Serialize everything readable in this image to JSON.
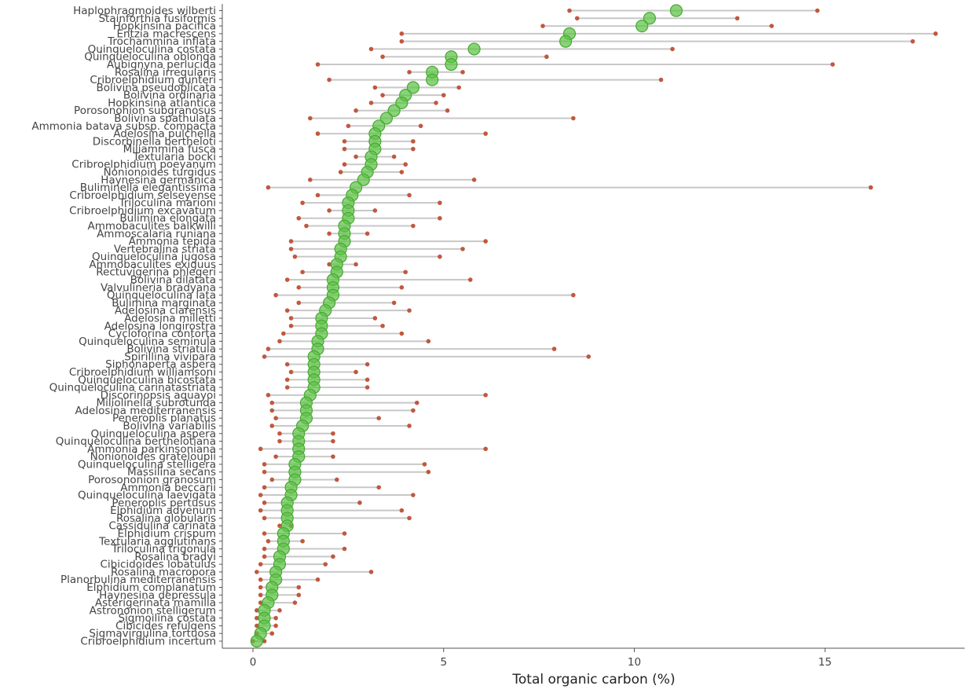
{
  "chart_data": {
    "type": "scatter",
    "title": "",
    "xlabel": "Total organic carbon (%)",
    "ylabel": "",
    "xlim": [
      -0.8,
      18.1
    ],
    "xticks": [
      0,
      5,
      10,
      15
    ],
    "grid": false,
    "legend": "none",
    "colors": {
      "point": "#5cc244",
      "point_edge": "#47a832",
      "range_dot": "#c0583f",
      "range_line": "#c8c8c8",
      "axis": "#555555",
      "label": "#444444"
    },
    "series": [
      {
        "label": "Haplophragmoides wilberti",
        "value": 11.1,
        "min": 8.3,
        "max": 14.8
      },
      {
        "label": "Stainforthia fusiformis",
        "value": 10.4,
        "min": 8.5,
        "max": 12.7
      },
      {
        "label": "Hopkinsina pacifica",
        "value": 10.2,
        "min": 7.6,
        "max": 13.6
      },
      {
        "label": "Entzia macrescens",
        "value": 8.3,
        "min": 3.9,
        "max": 17.9
      },
      {
        "label": "Trochammina inflata",
        "value": 8.2,
        "min": 3.9,
        "max": 17.3
      },
      {
        "label": "Quinqueloculina costata",
        "value": 5.8,
        "min": 3.1,
        "max": 11.0
      },
      {
        "label": "Quinqueloculina oblonga",
        "value": 5.2,
        "min": 3.4,
        "max": 7.7
      },
      {
        "label": "Aubignyna perlucida",
        "value": 5.2,
        "min": 1.7,
        "max": 15.2
      },
      {
        "label": "Rosalina irregularis",
        "value": 4.7,
        "min": 4.1,
        "max": 5.5
      },
      {
        "label": "Cribroelphidium gunteri",
        "value": 4.7,
        "min": 2.0,
        "max": 10.7
      },
      {
        "label": "Bolivina pseudoplicata",
        "value": 4.2,
        "min": 3.2,
        "max": 5.4
      },
      {
        "label": "Bolivina ordinaria",
        "value": 4.0,
        "min": 3.4,
        "max": 5.0
      },
      {
        "label": "Hopkinsina atlantica",
        "value": 3.9,
        "min": 3.1,
        "max": 4.8
      },
      {
        "label": "Porosononion subgranosus",
        "value": 3.7,
        "min": 2.7,
        "max": 5.1
      },
      {
        "label": "Bolivina spathulata",
        "value": 3.5,
        "min": 1.5,
        "max": 8.4
      },
      {
        "label": "Ammonia batava subsp. compacta",
        "value": 3.3,
        "min": 2.5,
        "max": 4.4
      },
      {
        "label": "Adelosina pulchella",
        "value": 3.2,
        "min": 1.7,
        "max": 6.1
      },
      {
        "label": "Discorbinella bertheloti",
        "value": 3.2,
        "min": 2.4,
        "max": 4.2
      },
      {
        "label": "Miliammina fusca",
        "value": 3.2,
        "min": 2.4,
        "max": 4.2
      },
      {
        "label": "Textularia bocki",
        "value": 3.1,
        "min": 2.7,
        "max": 3.7
      },
      {
        "label": "Cribroelphidium poeyanum",
        "value": 3.1,
        "min": 2.4,
        "max": 4.0
      },
      {
        "label": "Nonionoides turgidus",
        "value": 3.0,
        "min": 2.3,
        "max": 3.9
      },
      {
        "label": "Haynesina germanica",
        "value": 2.9,
        "min": 1.5,
        "max": 5.8
      },
      {
        "label": "Buliminella elegantissima",
        "value": 2.7,
        "min": 0.4,
        "max": 16.2
      },
      {
        "label": "Cribroelphidium selseyense",
        "value": 2.6,
        "min": 1.7,
        "max": 4.1
      },
      {
        "label": "Triloculina marioni",
        "value": 2.5,
        "min": 1.3,
        "max": 4.9
      },
      {
        "label": "Cribroelphidium excavatum",
        "value": 2.5,
        "min": 2.0,
        "max": 3.2
      },
      {
        "label": "Bulimina elongata",
        "value": 2.5,
        "min": 1.2,
        "max": 4.9
      },
      {
        "label": "Ammobaculites balkwilli",
        "value": 2.4,
        "min": 1.4,
        "max": 4.2
      },
      {
        "label": "Ammoscalaria runiana",
        "value": 2.4,
        "min": 2.0,
        "max": 3.0
      },
      {
        "label": "Ammonia tepida",
        "value": 2.4,
        "min": 1.0,
        "max": 6.1
      },
      {
        "label": "Vertebralina striata",
        "value": 2.3,
        "min": 1.0,
        "max": 5.5
      },
      {
        "label": "Quinqueloculina jugosa",
        "value": 2.3,
        "min": 1.1,
        "max": 4.9
      },
      {
        "label": "Ammobaculites exiguus",
        "value": 2.2,
        "min": 2.0,
        "max": 2.7
      },
      {
        "label": "Rectuvigerina phlegeri",
        "value": 2.2,
        "min": 1.3,
        "max": 4.0
      },
      {
        "label": "Bolivina dilatata",
        "value": 2.1,
        "min": 0.9,
        "max": 5.7
      },
      {
        "label": "Valvulineria bradyana",
        "value": 2.1,
        "min": 1.2,
        "max": 3.9
      },
      {
        "label": "Quinqueloculina lata",
        "value": 2.1,
        "min": 0.6,
        "max": 8.4
      },
      {
        "label": "Bulimina marginata",
        "value": 2.0,
        "min": 1.2,
        "max": 3.7
      },
      {
        "label": "Adelosina clarensis",
        "value": 1.9,
        "min": 0.9,
        "max": 4.1
      },
      {
        "label": "Adelosina milletti",
        "value": 1.8,
        "min": 1.0,
        "max": 3.2
      },
      {
        "label": "Adelosina longirostra",
        "value": 1.8,
        "min": 1.0,
        "max": 3.4
      },
      {
        "label": "Cycloforina contorta",
        "value": 1.8,
        "min": 0.8,
        "max": 3.9
      },
      {
        "label": "Quinqueloculina seminula",
        "value": 1.7,
        "min": 0.7,
        "max": 4.6
      },
      {
        "label": "Bolivina striatula",
        "value": 1.7,
        "min": 0.4,
        "max": 7.9
      },
      {
        "label": "Spirillina vivipara",
        "value": 1.6,
        "min": 0.3,
        "max": 8.8
      },
      {
        "label": "Siphonaperta aspera",
        "value": 1.6,
        "min": 0.9,
        "max": 3.0
      },
      {
        "label": "Cribroelphidium williamsoni",
        "value": 1.6,
        "min": 1.0,
        "max": 2.7
      },
      {
        "label": "Quinqueloculina bicostata",
        "value": 1.6,
        "min": 0.9,
        "max": 3.0
      },
      {
        "label": "Quinqueloculina carinatastriata",
        "value": 1.6,
        "min": 0.9,
        "max": 3.0
      },
      {
        "label": "Discorinopsis aguayoi",
        "value": 1.5,
        "min": 0.4,
        "max": 6.1
      },
      {
        "label": "Miliolinella subrotunda",
        "value": 1.4,
        "min": 0.5,
        "max": 4.3
      },
      {
        "label": "Adelosina mediterranensis",
        "value": 1.4,
        "min": 0.5,
        "max": 4.2
      },
      {
        "label": "Peneroplis planatus",
        "value": 1.4,
        "min": 0.6,
        "max": 3.3
      },
      {
        "label": "Bolivina variabilis",
        "value": 1.3,
        "min": 0.5,
        "max": 4.1
      },
      {
        "label": "Quinqueloculina aspera",
        "value": 1.2,
        "min": 0.7,
        "max": 2.1
      },
      {
        "label": "Quinqueloculina berthelotiana",
        "value": 1.2,
        "min": 0.7,
        "max": 2.1
      },
      {
        "label": "Ammonia parkinsoniana",
        "value": 1.2,
        "min": 0.2,
        "max": 6.1
      },
      {
        "label": "Nonionoides grateloupii",
        "value": 1.2,
        "min": 0.6,
        "max": 2.1
      },
      {
        "label": "Quinqueloculina stelligera",
        "value": 1.1,
        "min": 0.3,
        "max": 4.5
      },
      {
        "label": "Massilina secans",
        "value": 1.1,
        "min": 0.3,
        "max": 4.6
      },
      {
        "label": "Porosononion granosum",
        "value": 1.1,
        "min": 0.5,
        "max": 2.2
      },
      {
        "label": "Ammonia beccarii",
        "value": 1.0,
        "min": 0.3,
        "max": 3.3
      },
      {
        "label": "Quinqueloculina laevigata",
        "value": 1.0,
        "min": 0.2,
        "max": 4.2
      },
      {
        "label": "Peneroplis pertusus",
        "value": 0.9,
        "min": 0.3,
        "max": 2.8
      },
      {
        "label": "Elphidium advenum",
        "value": 0.9,
        "min": 0.2,
        "max": 3.9
      },
      {
        "label": "Rosalina globularis",
        "value": 0.9,
        "min": 0.3,
        "max": 4.1
      },
      {
        "label": "Cassidulina carinata",
        "value": 0.9,
        "min": 0.7,
        "max": 1.0
      },
      {
        "label": "Elphidium crispum",
        "value": 0.8,
        "min": 0.3,
        "max": 2.4
      },
      {
        "label": "Textularia agglutinans",
        "value": 0.8,
        "min": 0.4,
        "max": 1.3
      },
      {
        "label": "Triloculina trigonula",
        "value": 0.8,
        "min": 0.3,
        "max": 2.4
      },
      {
        "label": "Rosalina bradyi",
        "value": 0.7,
        "min": 0.3,
        "max": 2.1
      },
      {
        "label": "Cibicidoides lobatulus",
        "value": 0.7,
        "min": 0.2,
        "max": 1.9
      },
      {
        "label": "Rosalina macropora",
        "value": 0.6,
        "min": 0.1,
        "max": 3.1
      },
      {
        "label": "Planorbulina mediterranensis",
        "value": 0.6,
        "min": 0.2,
        "max": 1.7
      },
      {
        "label": "Elphidium complanatum",
        "value": 0.5,
        "min": 0.2,
        "max": 1.2
      },
      {
        "label": "Haynesina depressula",
        "value": 0.5,
        "min": 0.2,
        "max": 1.2
      },
      {
        "label": "Asterigerinata mamilla",
        "value": 0.4,
        "min": 0.2,
        "max": 1.1
      },
      {
        "label": "Astrononion stelligerum",
        "value": 0.3,
        "min": 0.1,
        "max": 0.7
      },
      {
        "label": "Sigmoilina costata",
        "value": 0.3,
        "min": 0.1,
        "max": 0.6
      },
      {
        "label": "Cibicides refulgens",
        "value": 0.3,
        "min": 0.1,
        "max": 0.6
      },
      {
        "label": "Sigmavirgulina tortuosa",
        "value": 0.2,
        "min": 0.1,
        "max": 0.5
      },
      {
        "label": "Cribroelphidium incertum",
        "value": 0.1,
        "min": 0.0,
        "max": 0.3
      }
    ]
  }
}
